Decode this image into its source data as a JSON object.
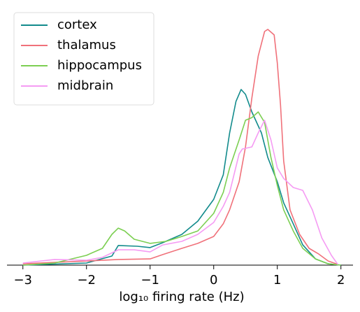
{
  "chart_data": {
    "type": "line",
    "xlabel": "log₁₀ firing rate (Hz)",
    "xlim": [
      -3.25,
      2.19
    ],
    "ylim": [
      0,
      1.3
    ],
    "xticks": [
      {
        "value": -3,
        "label": "−3"
      },
      {
        "value": -2,
        "label": "−2"
      },
      {
        "value": -1,
        "label": "−1"
      },
      0,
      1,
      2
    ],
    "legend": "upper left",
    "series": [
      {
        "name": "cortex",
        "color": "#128b8c",
        "x": [
          -3,
          -2,
          -1.6,
          -1.5,
          -1.2,
          -1,
          -0.8,
          -0.5,
          -0.25,
          0,
          0.15,
          0.25,
          0.35,
          0.43,
          0.5,
          0.6,
          0.75,
          0.85,
          1.0,
          1.1,
          1.25,
          1.4,
          1.6,
          1.8,
          2
        ],
        "values": [
          0,
          0.011,
          0.048,
          0.104,
          0.1,
          0.093,
          0.119,
          0.163,
          0.233,
          0.348,
          0.478,
          0.7,
          0.867,
          0.93,
          0.904,
          0.811,
          0.7,
          0.57,
          0.441,
          0.33,
          0.219,
          0.107,
          0.033,
          0.007,
          0
        ]
      },
      {
        "name": "thalamus",
        "color": "#f0717a",
        "x": [
          -3,
          -2,
          -1.5,
          -1,
          -0.8,
          -0.5,
          -0.25,
          0,
          0.15,
          0.25,
          0.4,
          0.5,
          0.6,
          0.7,
          0.8,
          0.85,
          0.95,
          1.0,
          1.05,
          1.1,
          1.2,
          1.35,
          1.5,
          1.65,
          1.8,
          1.95
        ],
        "values": [
          0.007,
          0.022,
          0.03,
          0.033,
          0.056,
          0.089,
          0.115,
          0.152,
          0.219,
          0.293,
          0.441,
          0.626,
          0.885,
          1.107,
          1.237,
          1.248,
          1.219,
          1.07,
          0.848,
          0.552,
          0.293,
          0.163,
          0.089,
          0.059,
          0.022,
          0.004
        ]
      },
      {
        "name": "hippocampus",
        "color": "#7ccf52",
        "x": [
          -3,
          -2.5,
          -2,
          -1.75,
          -1.6,
          -1.5,
          -1.4,
          -1.25,
          -1,
          -0.75,
          -0.5,
          -0.25,
          0,
          0.15,
          0.25,
          0.4,
          0.5,
          0.6,
          0.7,
          0.8,
          0.9,
          1.0,
          1.1,
          1.25,
          1.4,
          1.6,
          1.8,
          2
        ],
        "values": [
          0,
          0.011,
          0.052,
          0.089,
          0.163,
          0.196,
          0.181,
          0.137,
          0.115,
          0.126,
          0.152,
          0.181,
          0.274,
          0.385,
          0.515,
          0.663,
          0.767,
          0.781,
          0.811,
          0.756,
          0.57,
          0.422,
          0.293,
          0.181,
          0.089,
          0.033,
          0.007,
          0
        ]
      },
      {
        "name": "midbrain",
        "color": "#f59bf3",
        "x": [
          -3,
          -2.5,
          -2,
          -1.75,
          -1.5,
          -1.25,
          -1,
          -0.8,
          -0.5,
          -0.25,
          0,
          0.15,
          0.25,
          0.4,
          0.45,
          0.6,
          0.7,
          0.8,
          0.9,
          1.0,
          1.1,
          1.25,
          1.4,
          1.55,
          1.7,
          1.85,
          1.95
        ],
        "values": [
          0.011,
          0.03,
          0.026,
          0.041,
          0.081,
          0.081,
          0.07,
          0.107,
          0.126,
          0.163,
          0.226,
          0.311,
          0.385,
          0.589,
          0.615,
          0.626,
          0.7,
          0.767,
          0.663,
          0.515,
          0.459,
          0.411,
          0.396,
          0.293,
          0.144,
          0.052,
          0.004
        ]
      }
    ]
  }
}
